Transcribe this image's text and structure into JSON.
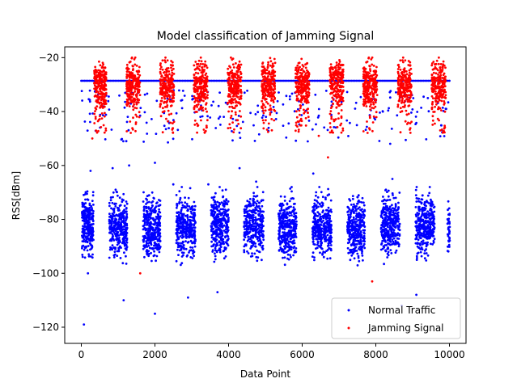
{
  "chart_data": {
    "type": "scatter",
    "title": "Model classification of Jamming Signal",
    "xlabel": "Data Point",
    "ylabel": "RSS[dBm]",
    "xlim": [
      -450,
      10450
    ],
    "ylim": [
      -126,
      -16
    ],
    "xticks": [
      0,
      2000,
      4000,
      6000,
      8000,
      10000
    ],
    "yticks": [
      -120,
      -100,
      -80,
      -60,
      -40,
      -20
    ],
    "grid": false,
    "legend_position": "lower-right",
    "series": [
      {
        "name": "Normal Traffic",
        "color": "#0000ff",
        "clusters": [
          {
            "x_range": [
              20,
              330
            ],
            "y_mean": -82,
            "y_spread": 7,
            "count": 260
          },
          {
            "x_range": [
              760,
              1250
            ],
            "y_mean": -83,
            "y_spread": 7,
            "count": 340
          },
          {
            "x_range": [
              1680,
              2150
            ],
            "y_mean": -83,
            "y_spread": 7,
            "count": 340
          },
          {
            "x_range": [
              2580,
              3100
            ],
            "y_mean": -83,
            "y_spread": 7,
            "count": 340
          },
          {
            "x_range": [
              3520,
              4000
            ],
            "y_mean": -82,
            "y_spread": 7,
            "count": 340
          },
          {
            "x_range": [
              4420,
              4950
            ],
            "y_mean": -82,
            "y_spread": 7,
            "count": 340
          },
          {
            "x_range": [
              5360,
              5850
            ],
            "y_mean": -83,
            "y_spread": 7,
            "count": 340
          },
          {
            "x_range": [
              6280,
              6800
            ],
            "y_mean": -83,
            "y_spread": 7,
            "count": 340
          },
          {
            "x_range": [
              7220,
              7700
            ],
            "y_mean": -83,
            "y_spread": 7,
            "count": 340
          },
          {
            "x_range": [
              8140,
              8650
            ],
            "y_mean": -82,
            "y_spread": 7,
            "count": 340
          },
          {
            "x_range": [
              9080,
              9600
            ],
            "y_mean": -82,
            "y_spread": 7,
            "count": 340
          },
          {
            "x_range": [
              9940,
              10010
            ],
            "y_mean": -83,
            "y_spread": 6,
            "count": 40
          }
        ],
        "baseline_points": {
          "y": -28.6,
          "x_range": [
            0,
            10000
          ],
          "count": 230
        },
        "scattered_points": [
          {
            "x": 70,
            "y": -119
          },
          {
            "x": 180,
            "y": -100
          },
          {
            "x": 1150,
            "y": -110
          },
          {
            "x": 2000,
            "y": -115
          },
          {
            "x": 2900,
            "y": -109
          },
          {
            "x": 3700,
            "y": -107
          },
          {
            "x": 8700,
            "y": -112
          },
          {
            "x": 9100,
            "y": -108
          },
          {
            "x": 250,
            "y": -62
          },
          {
            "x": 850,
            "y": -61
          },
          {
            "x": 1300,
            "y": -60
          },
          {
            "x": 2000,
            "y": -59
          },
          {
            "x": 2500,
            "y": -67
          },
          {
            "x": 4300,
            "y": -61
          },
          {
            "x": 3450,
            "y": -67
          },
          {
            "x": 4750,
            "y": -66
          },
          {
            "x": 6300,
            "y": -63
          },
          {
            "x": 8450,
            "y": -65
          }
        ],
        "mid_band": {
          "y_range": [
            -52,
            -32
          ],
          "count": 240
        }
      },
      {
        "name": "Jamming Signal",
        "color": "#ff0000",
        "clusters": [
          {
            "x_range": [
              350,
              680
            ],
            "y_mean": -30,
            "y_spread": 4,
            "count": 240
          },
          {
            "x_range": [
              1230,
              1600
            ],
            "y_mean": -30,
            "y_spread": 4,
            "count": 240
          },
          {
            "x_range": [
              2140,
              2520
            ],
            "y_mean": -30,
            "y_spread": 4,
            "count": 240
          },
          {
            "x_range": [
              3060,
              3430
            ],
            "y_mean": -30,
            "y_spread": 4,
            "count": 240
          },
          {
            "x_range": [
              3970,
              4350
            ],
            "y_mean": -30,
            "y_spread": 4,
            "count": 240
          },
          {
            "x_range": [
              4900,
              5270
            ],
            "y_mean": -29,
            "y_spread": 4,
            "count": 240
          },
          {
            "x_range": [
              5820,
              6190
            ],
            "y_mean": -30,
            "y_spread": 4,
            "count": 240
          },
          {
            "x_range": [
              6750,
              7120
            ],
            "y_mean": -29,
            "y_spread": 4,
            "count": 240
          },
          {
            "x_range": [
              7660,
              8040
            ],
            "y_mean": -30,
            "y_spread": 4,
            "count": 240
          },
          {
            "x_range": [
              8600,
              8970
            ],
            "y_mean": -30,
            "y_spread": 4,
            "count": 240
          },
          {
            "x_range": [
              9520,
              9900
            ],
            "y_mean": -30,
            "y_spread": 4,
            "count": 240
          }
        ],
        "scattered_points": [
          {
            "x": 300,
            "y": -50
          },
          {
            "x": 1600,
            "y": -100
          },
          {
            "x": 6700,
            "y": -57
          },
          {
            "x": 7900,
            "y": -103
          },
          {
            "x": 6450,
            "y": -49
          },
          {
            "x": 9750,
            "y": -47
          }
        ]
      }
    ]
  }
}
